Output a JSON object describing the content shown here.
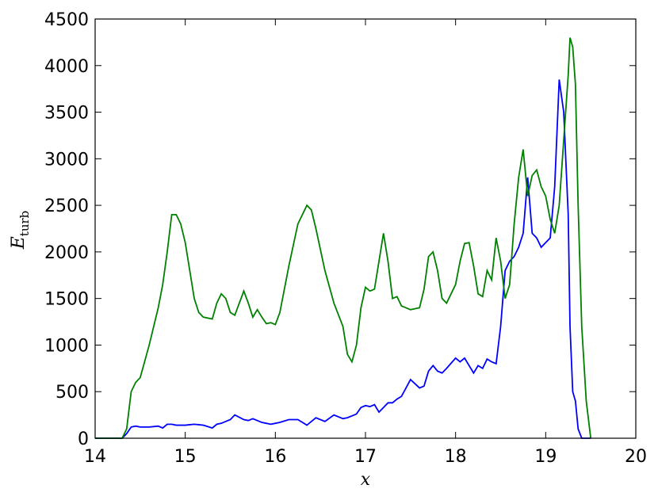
{
  "chart_data": {
    "type": "line",
    "xlabel": "x",
    "ylabel": "E",
    "ylabel_sub": "turb",
    "x": [
      14.0,
      14.3,
      14.35,
      14.4,
      14.45,
      14.5,
      14.6,
      14.7,
      14.75,
      14.8,
      14.85,
      14.9,
      14.95,
      15.0,
      15.05,
      15.1,
      15.15,
      15.2,
      15.3,
      15.35,
      15.4,
      15.45,
      15.5,
      15.55,
      15.65,
      15.7,
      15.75,
      15.8,
      15.85,
      15.9,
      15.95,
      16.0,
      16.05,
      16.15,
      16.25,
      16.35,
      16.4,
      16.45,
      16.55,
      16.65,
      16.75,
      16.8,
      16.85,
      16.9,
      16.95,
      17.0,
      17.05,
      17.1,
      17.15,
      17.2,
      17.25,
      17.3,
      17.35,
      17.4,
      17.5,
      17.6,
      17.65,
      17.7,
      17.75,
      17.8,
      17.85,
      17.9,
      18.0,
      18.05,
      18.1,
      18.15,
      18.2,
      18.25,
      18.3,
      18.35,
      18.4,
      18.45,
      18.5,
      18.55,
      18.6,
      18.65,
      18.7,
      18.75,
      18.8,
      18.85,
      18.9,
      18.95,
      19.0,
      19.05,
      19.1,
      19.15,
      19.2,
      19.25,
      19.27,
      19.3,
      19.33,
      19.36,
      19.4,
      19.45,
      19.5
    ],
    "series": [
      {
        "color": "#0000ff",
        "values": [
          0,
          0,
          50,
          120,
          130,
          120,
          120,
          130,
          110,
          150,
          150,
          140,
          140,
          140,
          145,
          150,
          145,
          140,
          110,
          150,
          160,
          180,
          200,
          250,
          200,
          190,
          210,
          190,
          170,
          160,
          150,
          160,
          170,
          200,
          200,
          140,
          180,
          220,
          180,
          250,
          210,
          220,
          240,
          260,
          330,
          350,
          340,
          360,
          280,
          330,
          380,
          380,
          420,
          450,
          630,
          540,
          560,
          720,
          780,
          720,
          700,
          750,
          860,
          820,
          860,
          780,
          700,
          780,
          750,
          850,
          820,
          800,
          1200,
          1800,
          1900,
          1950,
          2050,
          2200,
          2800,
          2200,
          2150,
          2050,
          2100,
          2150,
          2700,
          3850,
          3500,
          2400,
          1200,
          500,
          400,
          100,
          0,
          0,
          0
        ]
      },
      {
        "color": "#008000",
        "values": [
          0,
          0,
          100,
          500,
          600,
          650,
          1000,
          1400,
          1650,
          2000,
          2400,
          2400,
          2300,
          2100,
          1800,
          1500,
          1350,
          1300,
          1280,
          1450,
          1550,
          1500,
          1350,
          1320,
          1580,
          1450,
          1300,
          1380,
          1300,
          1230,
          1240,
          1220,
          1350,
          1850,
          2300,
          2500,
          2450,
          2250,
          1800,
          1450,
          1200,
          900,
          820,
          1000,
          1400,
          1620,
          1580,
          1600,
          1900,
          2200,
          1900,
          1500,
          1520,
          1420,
          1380,
          1400,
          1600,
          1950,
          2000,
          1800,
          1500,
          1450,
          1650,
          1900,
          2090,
          2100,
          1850,
          1550,
          1520,
          1800,
          1700,
          2150,
          1900,
          1500,
          1650,
          2300,
          2800,
          3100,
          2600,
          2820,
          2880,
          2700,
          2600,
          2350,
          2200,
          2500,
          3200,
          3900,
          4300,
          4200,
          3800,
          2500,
          1200,
          400,
          0
        ]
      }
    ],
    "xlim": [
      14,
      20
    ],
    "xticks": [
      14,
      15,
      16,
      17,
      18,
      19,
      20
    ],
    "ylim": [
      0,
      4500
    ],
    "yticks": [
      0,
      500,
      1000,
      1500,
      2000,
      2500,
      3000,
      3500,
      4000,
      4500
    ],
    "grid": false
  }
}
